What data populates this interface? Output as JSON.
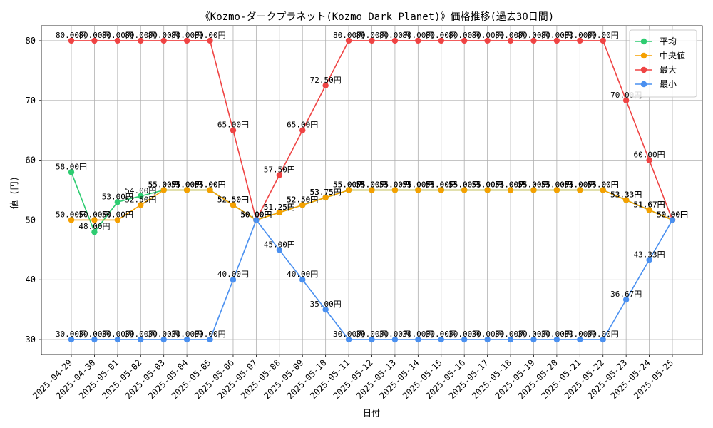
{
  "chart_data": {
    "type": "line",
    "title": "《Kozmo-ダークプラネット(Kozmo Dark Planet)》価格推移(過去30日間)",
    "xlabel": "日付",
    "ylabel": "値 (円)",
    "ylim": [
      27.5,
      82.5
    ],
    "yticks": [
      30,
      40,
      50,
      60,
      70,
      80
    ],
    "grid": true,
    "legend_position": "top-right",
    "categories": [
      "2025-04-29",
      "2025-04-30",
      "2025-05-01",
      "2025-05-02",
      "2025-05-03",
      "2025-05-04",
      "2025-05-05",
      "2025-05-06",
      "2025-05-07",
      "2025-05-08",
      "2025-05-09",
      "2025-05-10",
      "2025-05-11",
      "2025-05-12",
      "2025-05-13",
      "2025-05-14",
      "2025-05-15",
      "2025-05-16",
      "2025-05-17",
      "2025-05-18",
      "2025-05-19",
      "2025-05-20",
      "2025-05-21",
      "2025-05-22",
      "2025-05-23",
      "2025-05-24",
      "2025-05-25"
    ],
    "series": [
      {
        "name": "平均",
        "color": "#2ecc71",
        "values": [
          58.0,
          48.0,
          53.0,
          54.0,
          55.0,
          55.0,
          55.0,
          52.5,
          50.0,
          51.25,
          52.5,
          53.75,
          55.0,
          55.0,
          55.0,
          55.0,
          55.0,
          55.0,
          55.0,
          55.0,
          55.0,
          55.0,
          55.0,
          55.0,
          53.33,
          51.67,
          50.0
        ]
      },
      {
        "name": "中央値",
        "color": "#f5a000",
        "values": [
          50.0,
          50.0,
          50.0,
          52.5,
          55.0,
          55.0,
          55.0,
          52.5,
          50.0,
          51.25,
          52.5,
          53.75,
          55.0,
          55.0,
          55.0,
          55.0,
          55.0,
          55.0,
          55.0,
          55.0,
          55.0,
          55.0,
          55.0,
          55.0,
          53.33,
          51.67,
          50.0
        ]
      },
      {
        "name": "最大",
        "color": "#ef4444",
        "values": [
          80.0,
          80.0,
          80.0,
          80.0,
          80.0,
          80.0,
          80.0,
          65.0,
          50.0,
          57.5,
          65.0,
          72.5,
          80.0,
          80.0,
          80.0,
          80.0,
          80.0,
          80.0,
          80.0,
          80.0,
          80.0,
          80.0,
          80.0,
          80.0,
          70.0,
          60.0,
          50.0
        ]
      },
      {
        "name": "最小",
        "color": "#4a90f0",
        "values": [
          30.0,
          30.0,
          30.0,
          30.0,
          30.0,
          30.0,
          30.0,
          40.0,
          50.0,
          45.0,
          40.0,
          35.0,
          30.0,
          30.0,
          30.0,
          30.0,
          30.0,
          30.0,
          30.0,
          30.0,
          30.0,
          30.0,
          30.0,
          30.0,
          36.67,
          43.33,
          50.0
        ]
      }
    ],
    "label_suffix": "円"
  }
}
